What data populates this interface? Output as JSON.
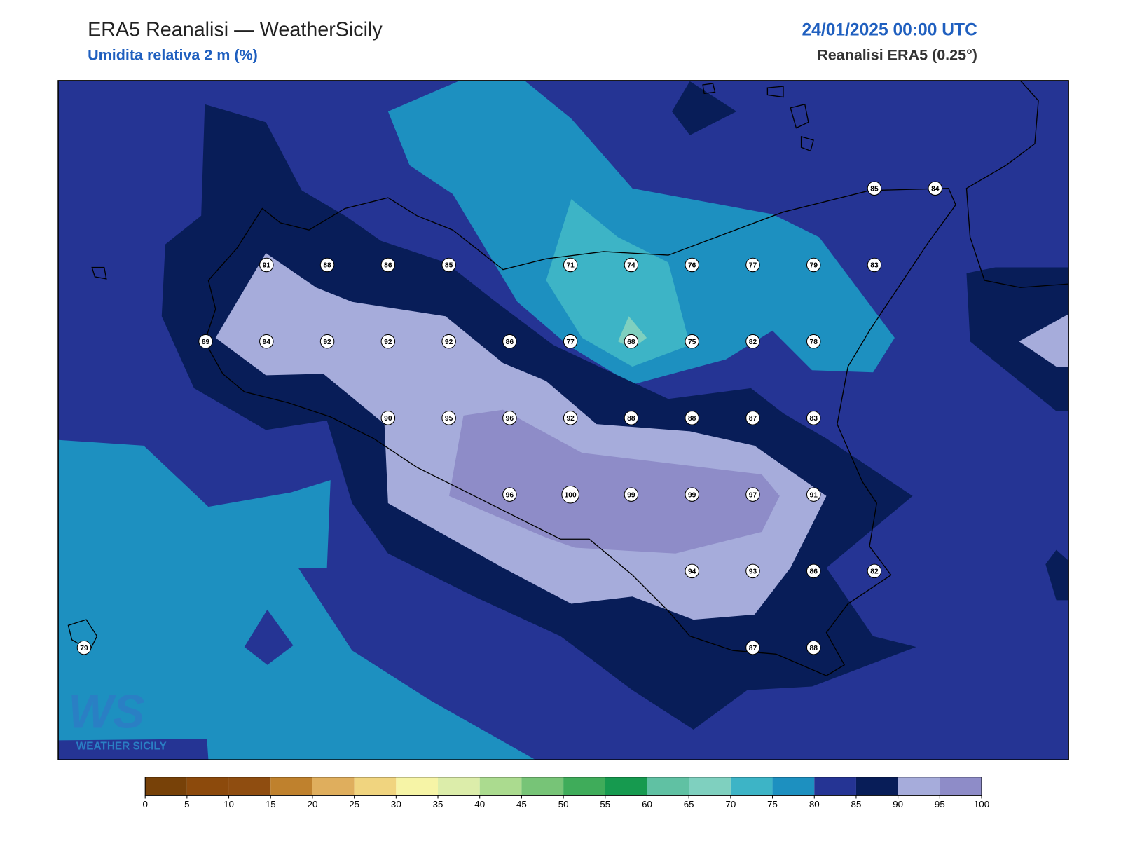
{
  "header": {
    "title": "ERA5 Reanalisi — WeatherSicily",
    "subtitle": "Umidita relativa 2 m (%)",
    "datetime": "24/01/2025 00:00 UTC",
    "source": "Reanalisi ERA5 (0.25°)"
  },
  "stations": {
    "values": [
      85,
      84,
      91,
      88,
      86,
      85,
      71,
      74,
      76,
      77,
      79,
      83,
      89,
      94,
      92,
      92,
      92,
      86,
      77,
      68,
      75,
      82,
      78,
      90,
      95,
      96,
      92,
      88,
      88,
      87,
      83,
      96,
      100,
      99,
      99,
      97,
      91,
      94,
      93,
      86,
      82,
      79,
      87,
      88
    ]
  },
  "colorbar": {
    "ticks": [
      0,
      5,
      10,
      15,
      20,
      25,
      30,
      35,
      40,
      45,
      50,
      55,
      60,
      65,
      70,
      75,
      80,
      85,
      90,
      95,
      100
    ],
    "colors": [
      "#774108",
      "#8c4a0c",
      "#8f4d10",
      "#bf812d",
      "#dfae5d",
      "#f0d47f",
      "#f6f4a6",
      "#dcedaa",
      "#abdb8f",
      "#77c477",
      "#3fac5a",
      "#169a4f",
      "#60c1a3",
      "#7fd0bf",
      "#3db4c6",
      "#1d90c0",
      "#253494",
      "#081d58",
      "#a6acdb",
      "#8e8cc8"
    ]
  },
  "logo": {
    "mark": "WS",
    "text": "WEATHER SICILY"
  }
}
